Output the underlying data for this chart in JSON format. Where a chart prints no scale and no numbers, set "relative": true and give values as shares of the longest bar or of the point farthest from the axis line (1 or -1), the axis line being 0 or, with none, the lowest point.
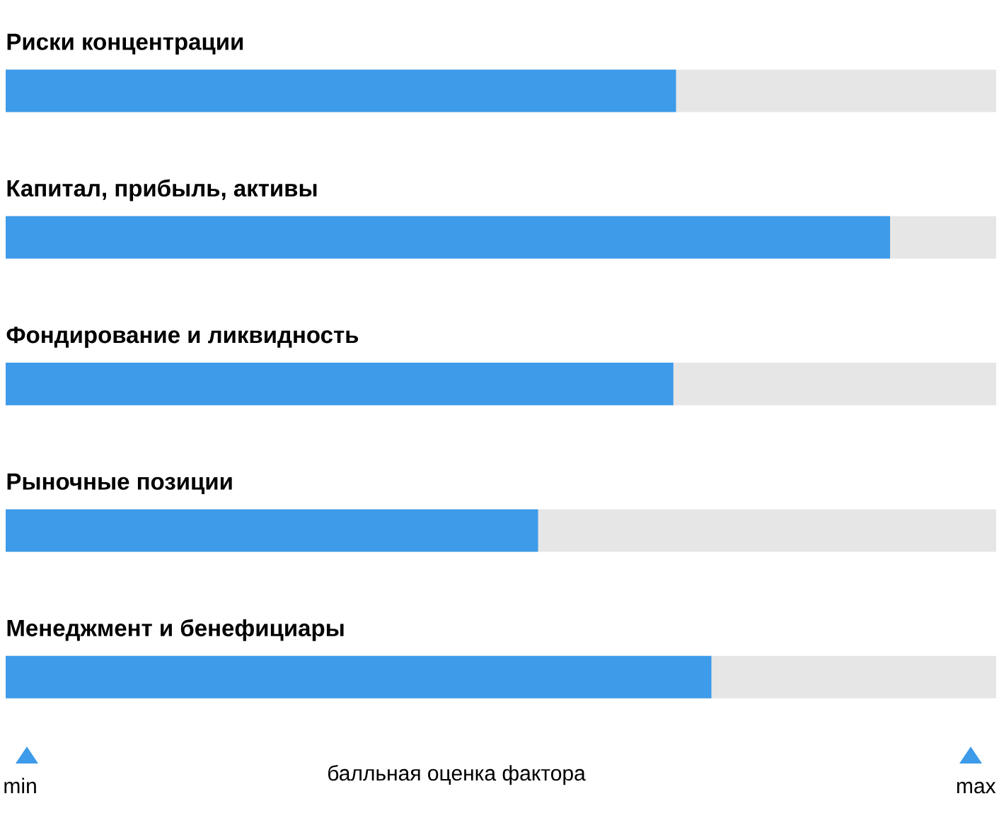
{
  "chart_data": {
    "type": "bar",
    "orientation": "horizontal",
    "relative": true,
    "xlabel": "балльная оценка фактора",
    "categories": [
      "Риски концентрации",
      "Капитал, прибыль, активы",
      "Фондирование и ликвидность",
      "Рыночные позиции",
      "Менеджмент и бенефициары"
    ],
    "values": [
      0.758,
      1,
      0.755,
      0.602,
      0.798
    ],
    "color": "#3d9be9",
    "annotations": [
      "min",
      "max"
    ]
  }
}
